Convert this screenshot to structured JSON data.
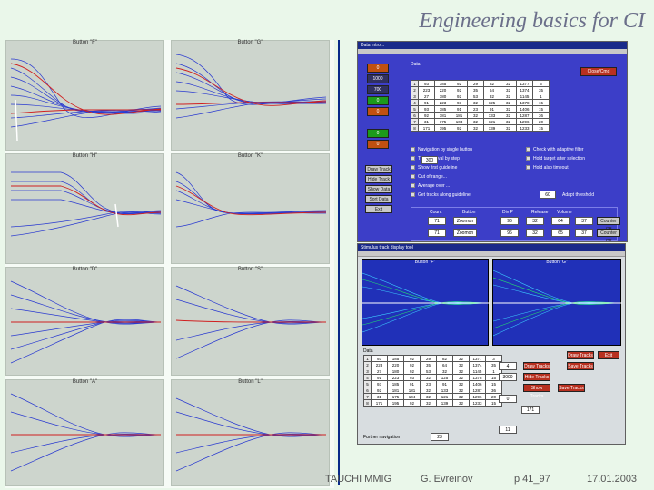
{
  "slide": {
    "title": "Engineering basics for CI",
    "footer": {
      "org": "TAUCHI MMIG",
      "author": "G. Evreinov",
      "page": "p 41_97",
      "date": "17.01.2003"
    }
  },
  "plots": [
    {
      "title": "Button \"F\""
    },
    {
      "title": "Button \"G\""
    },
    {
      "title": "Button \"H\""
    },
    {
      "title": "Button \"K\""
    },
    {
      "title": "Button \"D\""
    },
    {
      "title": "Button \"S\""
    },
    {
      "title": "Button \"A\""
    },
    {
      "title": "Button \"L\""
    }
  ],
  "window1": {
    "title": "Data Intro...",
    "side_buttons": [
      "0",
      "1000",
      "700",
      "0",
      "0",
      "0",
      "0",
      "0"
    ],
    "action_buttons": [
      "Draw Track",
      "Hide Track",
      "Show Data",
      "Sort Data",
      "Exit"
    ],
    "group_label": "Data",
    "red_button": "Close/Cmd",
    "table": [
      [
        "1",
        "93",
        "185",
        "92",
        "29",
        "82",
        "32",
        "1377",
        "3"
      ],
      [
        "2",
        "223",
        "220",
        "92",
        "35",
        "64",
        "32",
        "1374",
        "35"
      ],
      [
        "3",
        "27",
        "180",
        "92",
        "53",
        "32",
        "32",
        "1145",
        "1"
      ],
      [
        "4",
        "91",
        "223",
        "93",
        "32",
        "125",
        "32",
        "1378",
        "15"
      ],
      [
        "5",
        "93",
        "185",
        "91",
        "23",
        "91",
        "32",
        "1406",
        "15"
      ],
      [
        "6",
        "92",
        "181",
        "181",
        "32",
        "133",
        "32",
        "1287",
        "36"
      ],
      [
        "7",
        "31",
        "175",
        "104",
        "32",
        "121",
        "32",
        "1296",
        "20"
      ],
      [
        "8",
        "171",
        "195",
        "92",
        "32",
        "139",
        "32",
        "1233",
        "15"
      ]
    ],
    "checks_left": [
      "Navigation by single button",
      "Time interval by step",
      "Show first guideline",
      "Out of range...",
      "Average over ...",
      "Get tracks along guideline"
    ],
    "checks_right": [
      "Check with adaptive filter",
      "Hold target after selection",
      "Hold also timeout"
    ],
    "field_value": "300",
    "field2_value": "60",
    "field2_label": "Adapt threshold",
    "bottom_headers": [
      "Count",
      "Button",
      "Div P",
      "Release",
      "Volume"
    ],
    "bottom_rows": [
      [
        "71",
        "Zoomon",
        "96",
        "32",
        "64",
        "37",
        "Counter Off"
      ],
      [
        "71",
        "Zoomon",
        "96",
        "32",
        "65",
        "37",
        "Counter Off"
      ]
    ]
  },
  "window2": {
    "title": "Stimulus track display tool",
    "graph_labels": [
      "Button \"F\"",
      "Button \"G\""
    ],
    "group_label": "Data",
    "table": [
      [
        "1",
        "93",
        "185",
        "92",
        "29",
        "82",
        "32",
        "1377",
        "3"
      ],
      [
        "2",
        "223",
        "220",
        "92",
        "35",
        "64",
        "32",
        "1374",
        "35"
      ],
      [
        "3",
        "27",
        "180",
        "92",
        "53",
        "32",
        "32",
        "1145",
        "1"
      ],
      [
        "4",
        "91",
        "223",
        "93",
        "32",
        "125",
        "32",
        "1378",
        "15"
      ],
      [
        "5",
        "93",
        "185",
        "91",
        "23",
        "91",
        "32",
        "1406",
        "15"
      ],
      [
        "6",
        "92",
        "181",
        "181",
        "32",
        "133",
        "32",
        "1287",
        "36"
      ],
      [
        "7",
        "31",
        "175",
        "104",
        "32",
        "121",
        "32",
        "1296",
        "20"
      ],
      [
        "8",
        "171",
        "195",
        "92",
        "32",
        "139",
        "32",
        "1233",
        "15"
      ]
    ],
    "right_buttons": [
      "Draw Tracks",
      "Hide Tracks",
      "Show Tracks",
      "Save Tracks"
    ],
    "top_buttons": [
      "Draw Tracks",
      "Save Tracks",
      "Exit"
    ],
    "fields": [
      "4",
      "3000",
      "0",
      "171",
      "11"
    ],
    "bottom_label": "Further navigation",
    "bottom_value": "23"
  }
}
